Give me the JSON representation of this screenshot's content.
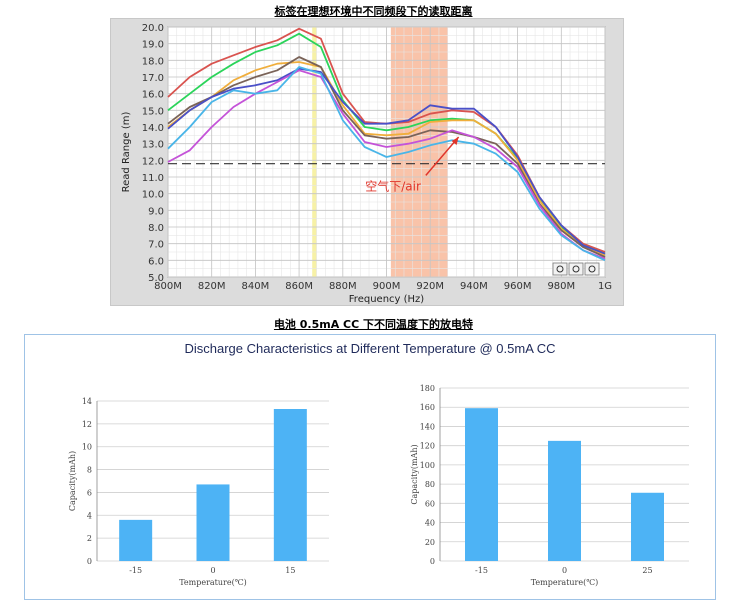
{
  "captions": {
    "top": "标签在理想环境中不同频段下的读取距离",
    "bottom": "电池 0.5mA CC 下不同温度下的放电特"
  },
  "chart_data": [
    {
      "type": "line",
      "title": "",
      "xlabel": "Frequency (Hz)",
      "ylabel": "Read Range (m)",
      "x": [
        800,
        810,
        820,
        830,
        840,
        850,
        860,
        870,
        880,
        890,
        900,
        910,
        920,
        930,
        940,
        950,
        960,
        970,
        980,
        990,
        1000
      ],
      "x_tick_labels": [
        "800M",
        "820M",
        "840M",
        "860M",
        "880M",
        "900M",
        "920M",
        "940M",
        "960M",
        "980M",
        "1G"
      ],
      "ylim": [
        5.0,
        20.0
      ],
      "y_tick_labels": [
        "5.0",
        "6.0",
        "7.0",
        "8.0",
        "9.0",
        "10.0",
        "11.0",
        "12.0",
        "13.0",
        "14.0",
        "15.0",
        "16.0",
        "17.0",
        "18.0",
        "19.0",
        "20.0"
      ],
      "grid": true,
      "reference_line": 11.8,
      "highlight_bands": [
        {
          "from": 866,
          "to": 868,
          "color": "#f7f1a6"
        },
        {
          "from": 902,
          "to": 928,
          "color": "#f9c3a9"
        }
      ],
      "annotation": "空气下/air",
      "series": [
        {
          "color": "#d9534f",
          "values": [
            15.8,
            17.0,
            17.8,
            18.3,
            18.8,
            19.2,
            19.9,
            19.3,
            16.0,
            14.3,
            14.2,
            14.3,
            14.8,
            15.0,
            14.9,
            14.0,
            12.3,
            9.8,
            8.1,
            7.0,
            6.5
          ]
        },
        {
          "color": "#2bd45a",
          "values": [
            15.0,
            16.0,
            17.0,
            17.8,
            18.5,
            18.9,
            19.6,
            18.8,
            15.6,
            14.0,
            13.8,
            14.0,
            14.4,
            14.5,
            14.4,
            13.6,
            12.1,
            9.7,
            8.0,
            6.9,
            6.4
          ]
        },
        {
          "color": "#f0ae3c",
          "values": [
            14.0,
            15.0,
            15.8,
            16.8,
            17.4,
            17.8,
            17.9,
            17.6,
            15.3,
            13.6,
            13.5,
            13.6,
            14.3,
            14.4,
            14.4,
            13.6,
            12.0,
            9.6,
            7.9,
            6.8,
            6.3
          ]
        },
        {
          "color": "#7a6358",
          "values": [
            14.2,
            15.2,
            15.8,
            16.5,
            17.0,
            17.4,
            18.2,
            17.6,
            15.0,
            13.5,
            13.3,
            13.4,
            13.8,
            13.7,
            13.4,
            13.0,
            11.8,
            9.4,
            7.8,
            6.8,
            6.2
          ]
        },
        {
          "color": "#4a50c8",
          "values": [
            13.9,
            15.0,
            15.8,
            16.3,
            16.5,
            16.8,
            17.5,
            17.3,
            15.5,
            14.2,
            14.2,
            14.4,
            15.3,
            15.1,
            15.1,
            14.0,
            12.2,
            9.8,
            8.1,
            6.9,
            6.4
          ]
        },
        {
          "color": "#c453d8",
          "values": [
            11.9,
            12.6,
            14.0,
            15.2,
            16.0,
            16.7,
            17.4,
            17.0,
            14.8,
            13.1,
            12.8,
            13.0,
            13.3,
            13.8,
            13.4,
            12.7,
            11.6,
            9.3,
            7.6,
            6.6,
            6.1
          ]
        },
        {
          "color": "#49b5e8",
          "values": [
            12.7,
            14.0,
            15.5,
            16.2,
            16.0,
            16.2,
            17.6,
            17.2,
            14.4,
            12.8,
            12.2,
            12.5,
            12.9,
            13.2,
            13.0,
            12.4,
            11.3,
            9.1,
            7.5,
            6.6,
            6.0
          ]
        }
      ]
    },
    {
      "type": "bar",
      "title": "Discharge Characteristics at Different Temperature @ 0.5mA CC",
      "xlabel": "Temperature(℃)",
      "ylabel": "Capacity(mAh)",
      "categories": [
        "-15",
        "0",
        "15"
      ],
      "values": [
        3.6,
        6.7,
        13.3
      ],
      "ylim": [
        0,
        14
      ],
      "y_ticks": [
        0,
        2,
        4,
        6,
        8,
        10,
        12,
        14
      ],
      "grid": true,
      "color": "#4db3f5"
    },
    {
      "type": "bar",
      "title": "Discharge Characteristics at Different Temperature @ 0.5mA CC",
      "xlabel": "Temperature(℃)",
      "ylabel": "Capacity(mAh)",
      "categories": [
        "-15",
        "0",
        "25"
      ],
      "values": [
        159,
        125,
        71
      ],
      "ylim": [
        0,
        180
      ],
      "y_ticks": [
        0,
        20,
        40,
        60,
        80,
        100,
        120,
        140,
        160,
        180
      ],
      "grid": true,
      "color": "#4db3f5"
    }
  ]
}
